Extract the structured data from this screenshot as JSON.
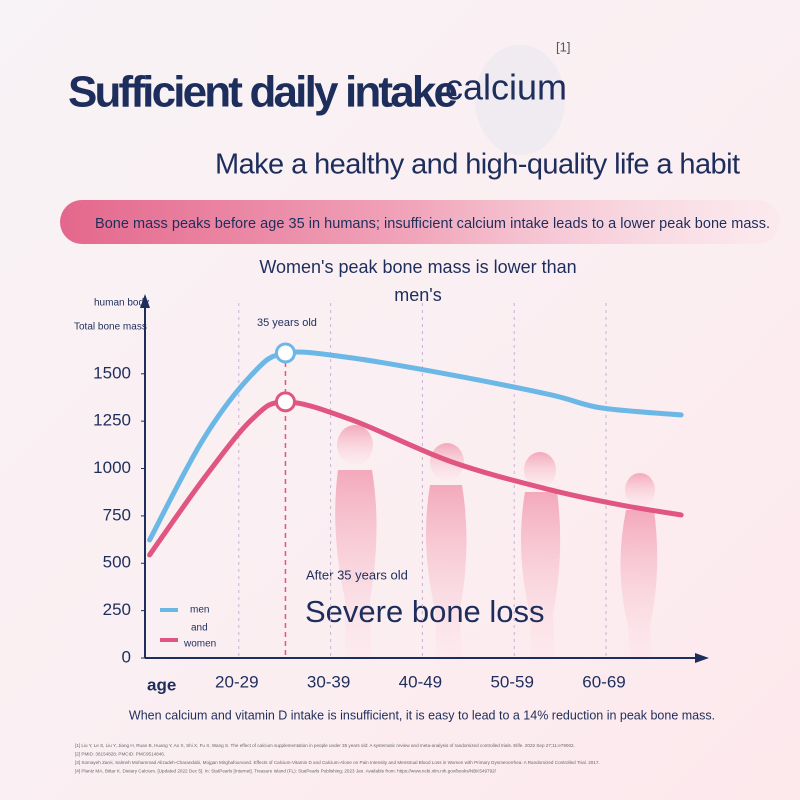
{
  "header": {
    "title": "Sufficient daily intake",
    "highlight": "calcium",
    "ref": "[1]",
    "subtitle": "Make a healthy and high-quality life a habit"
  },
  "banner": "Bone mass peaks before age 35 in humans; insufficient calcium intake leads to a lower peak bone mass.",
  "chart_data": {
    "type": "line",
    "title": [
      "Women's peak bone mass is lower than",
      "men's"
    ],
    "y_label": [
      "human body",
      "Total bone mass"
    ],
    "x_label": "age",
    "peak_label": "35 years old",
    "note": "After 35 years old",
    "callout": "Severe bone loss",
    "legend_joiner": "and",
    "xlim": [
      15,
      76
    ],
    "xticks": [
      {
        "value": 25,
        "label": "20-29"
      },
      {
        "value": 35,
        "label": "30-39"
      },
      {
        "value": 45,
        "label": "40-49"
      },
      {
        "value": 55,
        "label": "50-59"
      },
      {
        "value": 65,
        "label": "60-69"
      }
    ],
    "ylim": [
      0,
      1900
    ],
    "yticks": [
      0,
      250,
      500,
      750,
      1000,
      1250,
      1500
    ],
    "peak_x": 30.3,
    "series": [
      {
        "name": "men",
        "color": "#6bb7e6",
        "x": [
          15.5,
          21.3,
          26.6,
          30.3,
          37.5,
          48.4,
          59.2,
          64.7,
          73.4
        ],
        "values": [
          623,
          1151,
          1494,
          1610,
          1584,
          1494,
          1389,
          1320,
          1283
        ]
      },
      {
        "name": "women",
        "color": "#e05581",
        "x": [
          15.5,
          21.3,
          26.6,
          30.3,
          37.5,
          48.4,
          59.2,
          66.8,
          73.4
        ],
        "values": [
          544,
          940,
          1257,
          1352,
          1257,
          1035,
          887,
          808,
          755
        ]
      }
    ]
  },
  "footnote": "When calcium and vitamin D intake is insufficient, it is easy to lead to a 14% reduction in peak bone mass.",
  "references": [
    "[1] Liu Y, Le S, Liu Y, Jiang H, Ruan B, Huang Y, Ao X, Shi X, Fu X, Wang S. The effect of calcium supplementation in people under 35 years old: A systematic review and meta-analysis of randomized controlled trials. Elife. 2022 Sep 27;11:e79002.",
    "[2] PMID: 36154828; PMCID: PMC9514846.",
    "[3] Somayeh Zarei, Salmeh Mohammad Alizadeh-Charandabi, Mojgan Mirghafourvand. Effects of Calcium-Vitamin D and Calcium-Alone on Pain Intensity and Menstrual Blood Loss in Women with Primary Dysmenorrhea: A Randomized Controlled Trial. 2017.",
    "[4] Plantz MA, Bittar K. Dietary Calcium. [Updated 2022 Dec 5]. In: StatPearls [Internet]. Treasure Island (FL): StatPearls Publishing; 2023 Jan. Available from: https://www.ncbi.nlm.nih.gov/books/NBK549792/"
  ]
}
